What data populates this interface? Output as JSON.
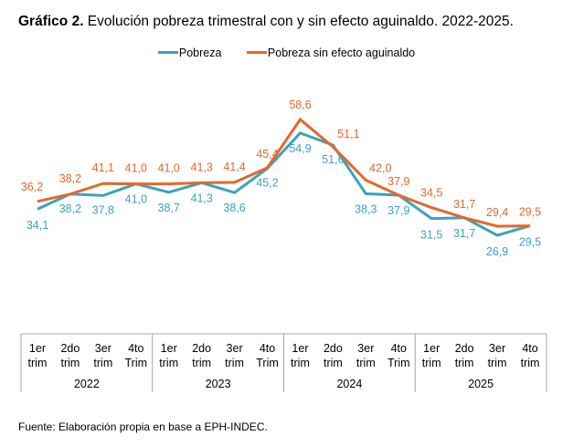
{
  "title": {
    "bold": "Gráfico 2.",
    "text": " Evolución pobreza trimestral con y sin efecto aguinaldo. 2022-2025."
  },
  "source": "Fuente: Elaboración propia en base a EPH-INDEC.",
  "colors": {
    "pobreza": "#3ba3bd",
    "sin_aguinaldo": "#e4682a",
    "table_border": "#a6a6a6"
  },
  "chart_data": {
    "type": "line",
    "title": "Gráfico 2. Evolución pobreza trimestral con y sin efecto aguinaldo. 2022-2025.",
    "xlabel": "",
    "ylabel": "",
    "grid": false,
    "legend_position": "top-center",
    "ylim": [
      0,
      65
    ],
    "categories": [
      {
        "quarter": [
          "1er",
          "trim"
        ],
        "year": "2022"
      },
      {
        "quarter": [
          "2do",
          "trim"
        ],
        "year": "2022"
      },
      {
        "quarter": [
          "3er",
          "trim"
        ],
        "year": "2022"
      },
      {
        "quarter": [
          "4to",
          "Trim"
        ],
        "year": "2022"
      },
      {
        "quarter": [
          "1er",
          "trim"
        ],
        "year": "2023"
      },
      {
        "quarter": [
          "2do",
          "trim"
        ],
        "year": "2023"
      },
      {
        "quarter": [
          "3er",
          "trim"
        ],
        "year": "2023"
      },
      {
        "quarter": [
          "4to",
          "Trim"
        ],
        "year": "2023"
      },
      {
        "quarter": [
          "1er",
          "trim"
        ],
        "year": "2024"
      },
      {
        "quarter": [
          "2do",
          "trim"
        ],
        "year": "2024"
      },
      {
        "quarter": [
          "3er",
          "trim"
        ],
        "year": "2024"
      },
      {
        "quarter": [
          "4to",
          "Trim"
        ],
        "year": "2024"
      },
      {
        "quarter": [
          "1er",
          "trim"
        ],
        "year": "2025"
      },
      {
        "quarter": [
          "2do",
          "trim"
        ],
        "year": "2025"
      },
      {
        "quarter": [
          "3er",
          "trim"
        ],
        "year": "2025"
      },
      {
        "quarter": [
          "4to",
          "trim"
        ],
        "year": "2025"
      }
    ],
    "years": [
      "2022",
      "2023",
      "2024",
      "2025"
    ],
    "series": [
      {
        "name": "Pobreza",
        "key": "pobreza",
        "values": [
          34.1,
          38.2,
          37.8,
          41.0,
          38.7,
          41.3,
          38.6,
          45.2,
          54.9,
          51.6,
          38.3,
          37.9,
          31.5,
          31.7,
          26.9,
          29.5
        ],
        "labels": [
          "34,1",
          "38,2",
          "37,8",
          "41,0",
          "38,7",
          "41,3",
          "38,6",
          "45,2",
          "54,9",
          "51,6",
          "38,3",
          "37,9",
          "31,5",
          "31,7",
          "26,9",
          "29,5"
        ]
      },
      {
        "name": "Pobreza sin efecto aguinaldo",
        "key": "sin_aguinaldo",
        "values": [
          36.2,
          38.2,
          41.1,
          41.0,
          41.0,
          41.3,
          41.4,
          45.4,
          58.6,
          51.1,
          42.0,
          37.9,
          34.5,
          31.7,
          29.4,
          29.5
        ],
        "labels": [
          "36,2",
          "38,2",
          "41,1",
          "41,0",
          "41,0",
          "41,3",
          "41,4",
          "45,4",
          "58,6",
          "51,1",
          "42,0",
          "37,9",
          "34,5",
          "31,7",
          "29,4",
          "29,5"
        ]
      }
    ]
  }
}
